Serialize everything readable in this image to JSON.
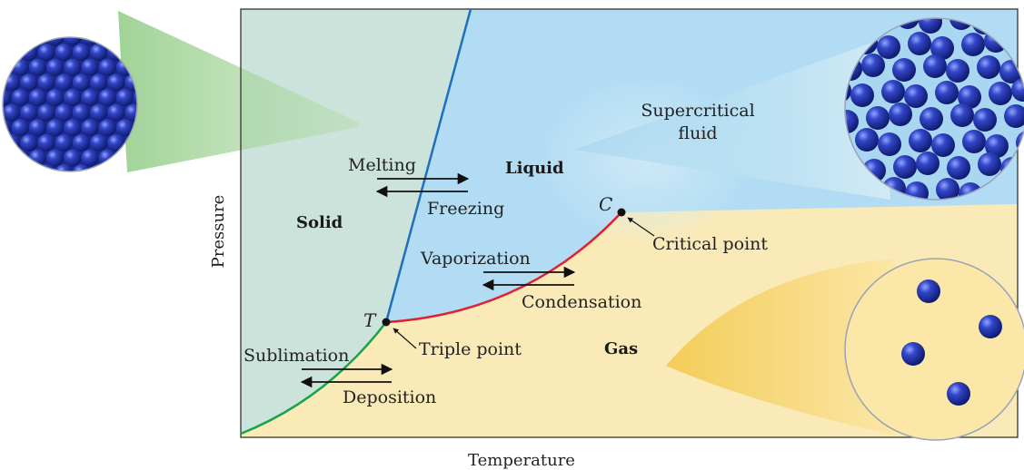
{
  "axes": {
    "x_label": "Temperature",
    "y_label": "Pressure"
  },
  "regions": {
    "solid": "Solid",
    "liquid": "Liquid",
    "gas": "Gas",
    "supercritical": [
      "Supercritical",
      "fluid"
    ]
  },
  "transitions": {
    "melting": "Melting",
    "freezing": "Freezing",
    "vaporization": "Vaporization",
    "condensation": "Condensation",
    "sublimation": "Sublimation",
    "deposition": "Deposition"
  },
  "points": {
    "triple_letter": "T",
    "triple_label": "Triple point",
    "critical_letter": "C",
    "critical_label": "Critical point"
  },
  "colors": {
    "solid_bg": "#cce3dc",
    "liquid_bg": "#b2dcf3",
    "gas_bg": "#faeab8",
    "melting_curve": "#1f6fc0",
    "vapor_curve": "#e01f33",
    "sublimation_curve": "#16a34a",
    "sphere": "#1e2f9e"
  }
}
